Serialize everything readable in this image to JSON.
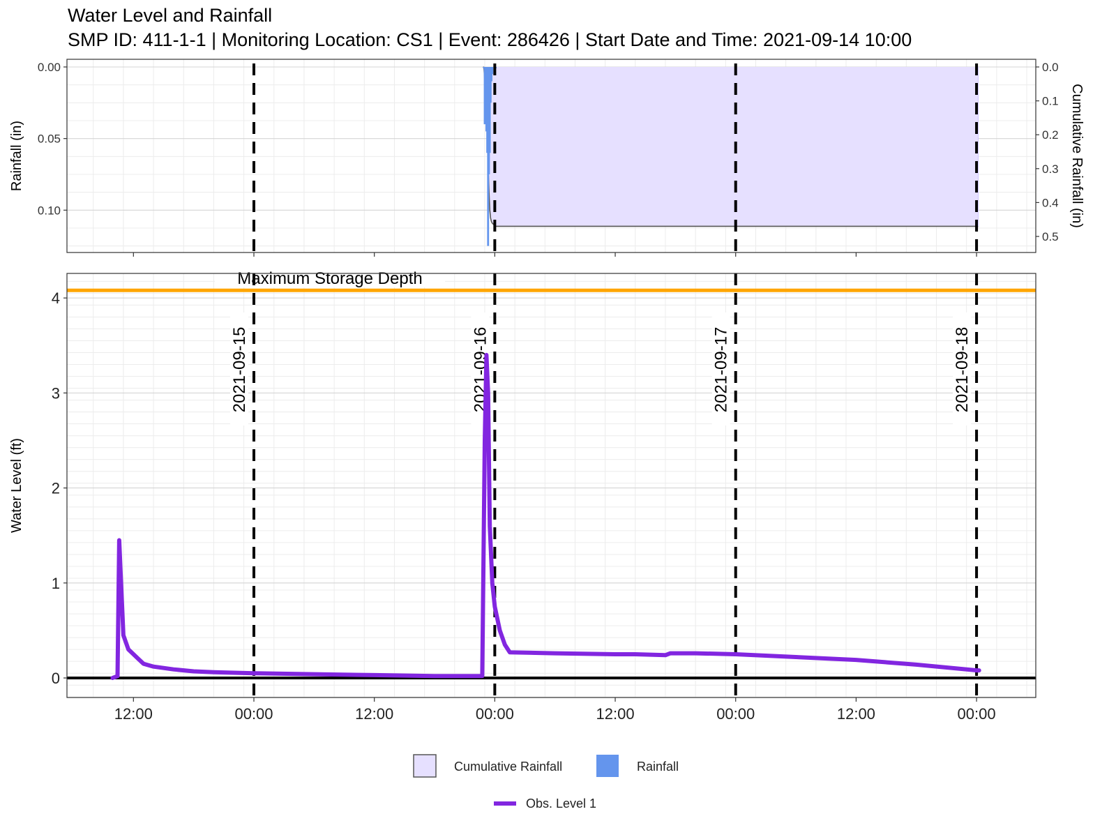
{
  "chart_data": {
    "type": "line",
    "title": "Water Level and Rainfall",
    "subtitle": "SMP ID: 411-1-1 | Monitoring Location: CS1 | Event: 286426 | Start Date and Time: 2021-09-14 10:00",
    "x_range": [
      "2021-09-14 05:00",
      "2021-09-18 05:00"
    ],
    "x_ticks": [
      {
        "t": "2021-09-14 12:00",
        "label": "12:00"
      },
      {
        "t": "2021-09-15 00:00",
        "label": "00:00"
      },
      {
        "t": "2021-09-15 12:00",
        "label": "12:00"
      },
      {
        "t": "2021-09-16 00:00",
        "label": "00:00"
      },
      {
        "t": "2021-09-16 12:00",
        "label": "12:00"
      },
      {
        "t": "2021-09-17 00:00",
        "label": "00:00"
      },
      {
        "t": "2021-09-17 12:00",
        "label": "12:00"
      },
      {
        "t": "2021-09-18 00:00",
        "label": "00:00"
      }
    ],
    "day_markers": [
      {
        "t": "2021-09-15 00:00",
        "label": "2021-09-15"
      },
      {
        "t": "2021-09-16 00:00",
        "label": "2021-09-16"
      },
      {
        "t": "2021-09-17 00:00",
        "label": "2021-09-17"
      },
      {
        "t": "2021-09-18 00:00",
        "label": "2021-09-18"
      }
    ],
    "rainfall_panel": {
      "ylabel_left": "Rainfall (in)",
      "ylabel_right": "Cumulative Rainfall (in)",
      "ylim_left": [
        0,
        0.131
      ],
      "ylim_right": [
        0,
        0.555
      ],
      "y_ticks_left": [
        "0.00",
        "0.05",
        "0.10"
      ],
      "y_ticks_right": [
        "0.0",
        "0.1",
        "0.2",
        "0.3",
        "0.4",
        "0.5"
      ],
      "inverted": true,
      "rainfall": [
        {
          "t": "2021-09-15 22:55",
          "value": 0.001
        },
        {
          "t": "2021-09-15 23:00",
          "value": 0.04
        },
        {
          "t": "2021-09-15 23:05",
          "value": 0.015
        },
        {
          "t": "2021-09-15 23:10",
          "value": 0.045
        },
        {
          "t": "2021-09-15 23:15",
          "value": 0.06
        },
        {
          "t": "2021-09-15 23:20",
          "value": 0.125
        },
        {
          "t": "2021-09-15 23:25",
          "value": 0.075
        },
        {
          "t": "2021-09-15 23:30",
          "value": 0.06
        },
        {
          "t": "2021-09-15 23:35",
          "value": 0.025
        },
        {
          "t": "2021-09-15 23:40",
          "value": 0.01
        },
        {
          "t": "2021-09-15 23:45",
          "value": 0.005
        },
        {
          "t": "2021-09-16 00:05",
          "value": 0.001
        }
      ],
      "cumulative": [
        {
          "t": "2021-09-15 22:50",
          "value": 0.0
        },
        {
          "t": "2021-09-15 22:55",
          "value": 0.001
        },
        {
          "t": "2021-09-15 23:00",
          "value": 0.041
        },
        {
          "t": "2021-09-15 23:05",
          "value": 0.056
        },
        {
          "t": "2021-09-15 23:10",
          "value": 0.101
        },
        {
          "t": "2021-09-15 23:15",
          "value": 0.161
        },
        {
          "t": "2021-09-15 23:20",
          "value": 0.286
        },
        {
          "t": "2021-09-15 23:25",
          "value": 0.361
        },
        {
          "t": "2021-09-15 23:30",
          "value": 0.421
        },
        {
          "t": "2021-09-15 23:35",
          "value": 0.446
        },
        {
          "t": "2021-09-15 23:40",
          "value": 0.456
        },
        {
          "t": "2021-09-15 23:45",
          "value": 0.461
        },
        {
          "t": "2021-09-16 00:05",
          "value": 0.47
        },
        {
          "t": "2021-09-16 00:10",
          "value": 0.47
        },
        {
          "t": "2021-09-18 00:10",
          "value": 0.47
        }
      ]
    },
    "level_panel": {
      "ylabel": "Water Level (ft)",
      "ylim": [
        -0.2,
        4.25
      ],
      "y_ticks": [
        "0",
        "1",
        "2",
        "3",
        "4"
      ],
      "max_storage_depth": {
        "value": 4.08,
        "label": "Maximum Storage Depth"
      },
      "series": [
        {
          "name": "Obs. Level 1",
          "points": [
            {
              "t": "2021-09-14 09:55",
              "value": 0.0
            },
            {
              "t": "2021-09-14 10:25",
              "value": 0.02
            },
            {
              "t": "2021-09-14 10:35",
              "value": 1.45
            },
            {
              "t": "2021-09-14 11:00",
              "value": 0.45
            },
            {
              "t": "2021-09-14 11:30",
              "value": 0.3
            },
            {
              "t": "2021-09-14 12:30",
              "value": 0.2
            },
            {
              "t": "2021-09-14 13:00",
              "value": 0.15
            },
            {
              "t": "2021-09-14 14:00",
              "value": 0.12
            },
            {
              "t": "2021-09-14 16:00",
              "value": 0.09
            },
            {
              "t": "2021-09-14 18:00",
              "value": 0.07
            },
            {
              "t": "2021-09-14 20:00",
              "value": 0.06
            },
            {
              "t": "2021-09-15 00:00",
              "value": 0.05
            },
            {
              "t": "2021-09-15 06:00",
              "value": 0.04
            },
            {
              "t": "2021-09-15 12:00",
              "value": 0.03
            },
            {
              "t": "2021-09-15 18:00",
              "value": 0.02
            },
            {
              "t": "2021-09-15 22:45",
              "value": 0.02
            },
            {
              "t": "2021-09-15 23:00",
              "value": 2.5
            },
            {
              "t": "2021-09-15 23:10",
              "value": 3.4
            },
            {
              "t": "2021-09-15 23:20",
              "value": 3.0
            },
            {
              "t": "2021-09-15 23:30",
              "value": 1.6
            },
            {
              "t": "2021-09-15 23:45",
              "value": 1.0
            },
            {
              "t": "2021-09-16 00:00",
              "value": 0.75
            },
            {
              "t": "2021-09-16 00:30",
              "value": 0.5
            },
            {
              "t": "2021-09-16 01:00",
              "value": 0.35
            },
            {
              "t": "2021-09-16 01:30",
              "value": 0.27
            },
            {
              "t": "2021-09-16 06:00",
              "value": 0.26
            },
            {
              "t": "2021-09-16 12:00",
              "value": 0.25
            },
            {
              "t": "2021-09-16 14:00",
              "value": 0.25
            },
            {
              "t": "2021-09-16 17:00",
              "value": 0.24
            },
            {
              "t": "2021-09-16 17:30",
              "value": 0.26
            },
            {
              "t": "2021-09-16 20:00",
              "value": 0.26
            },
            {
              "t": "2021-09-17 00:00",
              "value": 0.25
            },
            {
              "t": "2021-09-17 06:00",
              "value": 0.22
            },
            {
              "t": "2021-09-17 12:00",
              "value": 0.19
            },
            {
              "t": "2021-09-17 18:00",
              "value": 0.14
            },
            {
              "t": "2021-09-18 00:00",
              "value": 0.08
            },
            {
              "t": "2021-09-18 00:15",
              "value": 0.08
            }
          ]
        }
      ]
    },
    "legend": {
      "placement": "bottom",
      "items": [
        {
          "label": "Cumulative Rainfall"
        },
        {
          "label": "Rainfall"
        },
        {
          "label": "Obs. Level 1"
        }
      ]
    },
    "colors": {
      "rainfall": "#6495ed",
      "cumulative_fill": "#e6e0ff",
      "cumulative_line": "#555555",
      "obs_level": "#8226e0",
      "max_storage": "#ffa500",
      "day_marker": "#000000",
      "grid_major": "#d4d4d4",
      "grid_minor": "#ececec"
    }
  }
}
